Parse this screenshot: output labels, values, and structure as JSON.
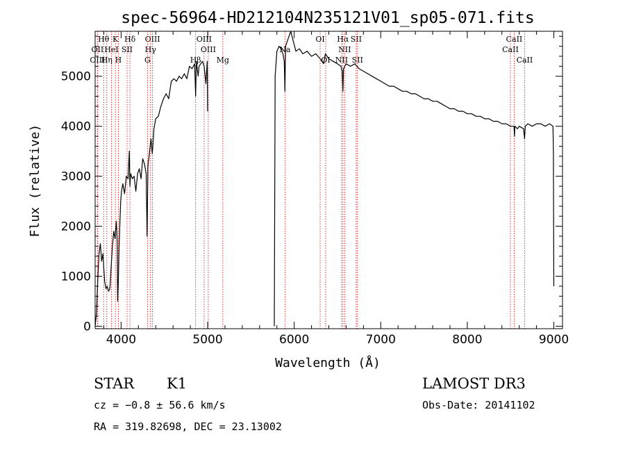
{
  "chart_data": {
    "type": "line",
    "title": "spec-56964-HD212104N235121V01_sp05-071.fits",
    "xlabel": "Wavelength (Å)",
    "ylabel": "Flux (relative)",
    "xlim": [
      3700,
      9100
    ],
    "ylim": [
      -50,
      5900
    ],
    "xticks": [
      4000,
      5000,
      6000,
      7000,
      8000,
      9000
    ],
    "yticks": [
      0,
      1000,
      2000,
      3000,
      4000,
      5000
    ],
    "series": [
      {
        "name": "spectrum",
        "segments": [
          [
            [
              3700,
              0
            ],
            [
              3715,
              250
            ],
            [
              3730,
              900
            ],
            [
              3745,
              1450
            ],
            [
              3760,
              1650
            ],
            [
              3775,
              1300
            ],
            [
              3790,
              1450
            ],
            [
              3800,
              1150
            ],
            [
              3810,
              900
            ],
            [
              3825,
              750
            ],
            [
              3840,
              800
            ],
            [
              3855,
              700
            ],
            [
              3870,
              750
            ],
            [
              3885,
              1200
            ],
            [
              3900,
              1600
            ],
            [
              3915,
              1900
            ],
            [
              3930,
              1750
            ],
            [
              3945,
              2100
            ],
            [
              3955,
              1700
            ],
            [
              3960,
              500
            ],
            [
              3968,
              900
            ],
            [
              3975,
              1500
            ],
            [
              3985,
              2000
            ],
            [
              3995,
              2500
            ],
            [
              4005,
              2700
            ],
            [
              4020,
              2850
            ],
            [
              4040,
              2650
            ],
            [
              4060,
              3000
            ],
            [
              4080,
              2950
            ],
            [
              4095,
              3500
            ],
            [
              4102,
              2800
            ],
            [
              4110,
              3050
            ],
            [
              4130,
              2950
            ],
            [
              4150,
              3000
            ],
            [
              4170,
              2700
            ],
            [
              4190,
              3050
            ],
            [
              4210,
              3150
            ],
            [
              4230,
              2950
            ],
            [
              4250,
              3350
            ],
            [
              4270,
              3250
            ],
            [
              4290,
              3050
            ],
            [
              4300,
              1800
            ],
            [
              4310,
              3200
            ],
            [
              4330,
              3500
            ],
            [
              4345,
              3750
            ],
            [
              4360,
              3450
            ],
            [
              4380,
              3950
            ],
            [
              4400,
              4150
            ],
            [
              4430,
              4200
            ],
            [
              4460,
              4400
            ],
            [
              4490,
              4550
            ],
            [
              4520,
              4650
            ],
            [
              4550,
              4550
            ],
            [
              4580,
              4900
            ],
            [
              4610,
              4950
            ],
            [
              4640,
              4900
            ],
            [
              4670,
              5000
            ],
            [
              4700,
              4950
            ],
            [
              4730,
              5050
            ],
            [
              4760,
              4950
            ],
            [
              4790,
              5200
            ],
            [
              4820,
              5150
            ],
            [
              4850,
              5250
            ],
            [
              4861,
              4600
            ],
            [
              4870,
              5300
            ],
            [
              4890,
              5000
            ],
            [
              4900,
              5200
            ],
            [
              4920,
              5250
            ],
            [
              4940,
              5300
            ],
            [
              4960,
              5200
            ],
            [
              4980,
              4850
            ],
            [
              4995,
              5300
            ],
            [
              5000,
              4300
            ]
          ],
          [
            [
              5770,
              0
            ],
            [
              5780,
              5000
            ],
            [
              5800,
              5500
            ],
            [
              5825,
              5600
            ],
            [
              5850,
              5550
            ],
            [
              5870,
              5450
            ],
            [
              5885,
              5300
            ],
            [
              5893,
              4700
            ],
            [
              5900,
              5600
            ],
            [
              5930,
              5750
            ],
            [
              5960,
              5900
            ],
            [
              5990,
              5700
            ],
            [
              6020,
              5500
            ],
            [
              6060,
              5550
            ],
            [
              6100,
              5450
            ],
            [
              6150,
              5500
            ],
            [
              6200,
              5400
            ],
            [
              6250,
              5450
            ],
            [
              6300,
              5350
            ],
            [
              6340,
              5250
            ],
            [
              6360,
              5450
            ],
            [
              6400,
              5350
            ],
            [
              6450,
              5300
            ],
            [
              6500,
              5250
            ],
            [
              6540,
              5200
            ],
            [
              6555,
              5100
            ],
            [
              6563,
              4700
            ],
            [
              6570,
              5150
            ],
            [
              6600,
              5250
            ],
            [
              6650,
              5200
            ],
            [
              6700,
              5250
            ],
            [
              6750,
              5150
            ],
            [
              6800,
              5100
            ],
            [
              6850,
              5050
            ],
            [
              6900,
              5000
            ],
            [
              6950,
              4950
            ],
            [
              7000,
              4900
            ],
            [
              7050,
              4850
            ],
            [
              7100,
              4800
            ],
            [
              7150,
              4800
            ],
            [
              7200,
              4750
            ],
            [
              7250,
              4700
            ],
            [
              7300,
              4700
            ],
            [
              7350,
              4650
            ],
            [
              7400,
              4650
            ],
            [
              7450,
              4600
            ],
            [
              7500,
              4550
            ],
            [
              7550,
              4550
            ],
            [
              7600,
              4500
            ],
            [
              7650,
              4500
            ],
            [
              7700,
              4450
            ],
            [
              7750,
              4400
            ],
            [
              7800,
              4350
            ],
            [
              7850,
              4350
            ],
            [
              7900,
              4300
            ],
            [
              7950,
              4300
            ],
            [
              8000,
              4250
            ],
            [
              8050,
              4250
            ],
            [
              8100,
              4200
            ],
            [
              8150,
              4200
            ],
            [
              8200,
              4150
            ],
            [
              8250,
              4150
            ],
            [
              8300,
              4100
            ],
            [
              8350,
              4100
            ],
            [
              8400,
              4050
            ],
            [
              8450,
              4050
            ],
            [
              8500,
              4000
            ],
            [
              8540,
              4000
            ],
            [
              8545,
              3800
            ],
            [
              8550,
              4000
            ],
            [
              8580,
              3950
            ],
            [
              8600,
              4000
            ],
            [
              8650,
              3950
            ],
            [
              8662,
              3750
            ],
            [
              8670,
              4000
            ],
            [
              8700,
              4050
            ],
            [
              8750,
              4000
            ],
            [
              8800,
              4050
            ],
            [
              8850,
              4050
            ],
            [
              8900,
              4000
            ],
            [
              8950,
              4050
            ],
            [
              8990,
              4000
            ],
            [
              8995,
              3500
            ],
            [
              9000,
              800
            ]
          ]
        ]
      }
    ],
    "spectral_lines": [
      {
        "label": "Hθ",
        "wl": 3798,
        "row": 0
      },
      {
        "label": "OII",
        "wl": 3727,
        "row": 1
      },
      {
        "label": "OIII",
        "wl": 3727,
        "row": 2
      },
      {
        "label": "HeI",
        "wl": 3889,
        "row": 1
      },
      {
        "label": "Hη",
        "wl": 3835,
        "row": 2
      },
      {
        "label": "K",
        "wl": 3934,
        "row": 0
      },
      {
        "label": "H",
        "wl": 3968,
        "row": 2
      },
      {
        "label": "SII",
        "wl": 4069,
        "row": 1
      },
      {
        "label": "Hδ",
        "wl": 4102,
        "row": 0
      },
      {
        "label": "OIII",
        "wl": 4363,
        "row": 0
      },
      {
        "label": "Hγ",
        "wl": 4340,
        "row": 1
      },
      {
        "label": "G",
        "wl": 4305,
        "row": 2
      },
      {
        "label": "OIII",
        "wl": 4959,
        "row": 0
      },
      {
        "label": "OIII",
        "wl": 5007,
        "row": 1
      },
      {
        "label": "Hβ",
        "wl": 4861,
        "row": 2
      },
      {
        "label": "Mg",
        "wl": 5175,
        "row": 2
      },
      {
        "label": "Na",
        "wl": 5893,
        "row": 1
      },
      {
        "label": "OI",
        "wl": 6300,
        "row": 0
      },
      {
        "label": "OI",
        "wl": 6364,
        "row": 2
      },
      {
        "label": "Hα",
        "wl": 6563,
        "row": 0
      },
      {
        "label": "NII",
        "wl": 6548,
        "row": 2
      },
      {
        "label": "NII",
        "wl": 6583,
        "row": 1
      },
      {
        "label": "SII",
        "wl": 6716,
        "row": 0
      },
      {
        "label": "SII",
        "wl": 6731,
        "row": 2
      },
      {
        "label": "CaII",
        "wl": 8542,
        "row": 0
      },
      {
        "label": "CaII",
        "wl": 8498,
        "row": 1
      },
      {
        "label": "CaII",
        "wl": 8662,
        "row": 2
      }
    ],
    "line_color": "#cc0000"
  },
  "info": {
    "class_label": "STAR",
    "subclass": "K1",
    "survey": "LAMOST DR3",
    "cz": "cz = −0.8 ± 56.6 km/s",
    "obs_date": "Obs-Date: 20141102",
    "coords": "RA = 319.82698, DEC =  23.13002"
  }
}
